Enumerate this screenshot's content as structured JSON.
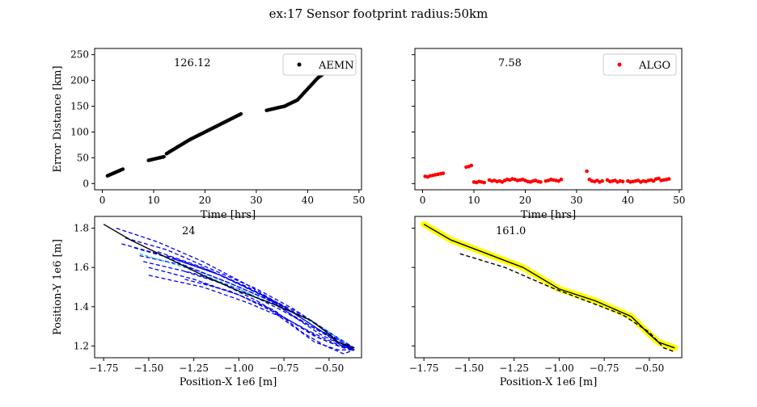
{
  "figure": {
    "suptitle": "ex:17  Sensor footprint radius:50km"
  },
  "chart_data": [
    {
      "id": "tl",
      "type": "scatter",
      "annotation": "126.12",
      "xlabel": "Time [hrs]",
      "ylabel": "Error Distance [km]",
      "xlim": [
        -1.5,
        50.5
      ],
      "ylim": [
        -12,
        262
      ],
      "xticks": [
        0,
        10,
        20,
        30,
        40,
        50
      ],
      "yticks": [
        0,
        50,
        100,
        150,
        200,
        250
      ],
      "show_xticklabels": true,
      "show_yticklabels": true,
      "legend": {
        "label": "AEMN",
        "position": "top-right"
      },
      "series": [
        {
          "name": "AEMN",
          "color": "#000000",
          "segments": [
            {
              "x": [
                1,
                4
              ],
              "y": [
                15,
                28
              ]
            },
            {
              "x": [
                9,
                12
              ],
              "y": [
                45,
                52
              ]
            },
            {
              "x": [
                12.5,
                17
              ],
              "y": [
                58,
                85
              ]
            },
            {
              "x": [
                17,
                22
              ],
              "y": [
                85,
                110
              ]
            },
            {
              "x": [
                22,
                27
              ],
              "y": [
                110,
                135
              ]
            },
            {
              "x": [
                32,
                35.5
              ],
              "y": [
                142,
                150
              ]
            },
            {
              "x": [
                35.5,
                38
              ],
              "y": [
                150,
                162
              ]
            },
            {
              "x": [
                38,
                42
              ],
              "y": [
                162,
                205
              ]
            },
            {
              "x": [
                42,
                48
              ],
              "y": [
                205,
                248
              ]
            }
          ]
        }
      ]
    },
    {
      "id": "tr",
      "type": "scatter",
      "annotation": "7.58",
      "xlabel": "Time [hrs]",
      "ylabel": "",
      "xlim": [
        -1.5,
        50.5
      ],
      "ylim": [
        -12,
        262
      ],
      "xticks": [
        0,
        10,
        20,
        30,
        40,
        50
      ],
      "yticks": [
        0,
        50,
        100,
        150,
        200,
        250
      ],
      "show_xticklabels": true,
      "show_yticklabels": false,
      "legend": {
        "label": "ALGO",
        "position": "top-right"
      },
      "series": [
        {
          "name": "ALGO",
          "color": "#ff0000",
          "points": [
            [
              0.5,
              14
            ],
            [
              1,
              13
            ],
            [
              1.5,
              15
            ],
            [
              2,
              16
            ],
            [
              2.5,
              17
            ],
            [
              3,
              18
            ],
            [
              3.5,
              19
            ],
            [
              4,
              20
            ],
            [
              8.5,
              32
            ],
            [
              9,
              33
            ],
            [
              9.5,
              35
            ],
            [
              10,
              3
            ],
            [
              10.5,
              2
            ],
            [
              11,
              4
            ],
            [
              11.5,
              3
            ],
            [
              12,
              2
            ],
            [
              13,
              7
            ],
            [
              13.5,
              5
            ],
            [
              14,
              6
            ],
            [
              14.5,
              4
            ],
            [
              15,
              5
            ],
            [
              15.5,
              3
            ],
            [
              16,
              6
            ],
            [
              16.5,
              8
            ],
            [
              17,
              7
            ],
            [
              17.5,
              9
            ],
            [
              18,
              8
            ],
            [
              18.5,
              6
            ],
            [
              19,
              7
            ],
            [
              19.5,
              8
            ],
            [
              20,
              6
            ],
            [
              20.5,
              4
            ],
            [
              21,
              3
            ],
            [
              21.5,
              5
            ],
            [
              22,
              6
            ],
            [
              22.5,
              4
            ],
            [
              23,
              3
            ],
            [
              24,
              5
            ],
            [
              24.5,
              6
            ],
            [
              25,
              8
            ],
            [
              25.5,
              7
            ],
            [
              26,
              6
            ],
            [
              26.5,
              5
            ],
            [
              27,
              8
            ],
            [
              32,
              24
            ],
            [
              32.5,
              8
            ],
            [
              33,
              5
            ],
            [
              33.5,
              4
            ],
            [
              34,
              6
            ],
            [
              34.5,
              3
            ],
            [
              35,
              5
            ],
            [
              36,
              7
            ],
            [
              36.5,
              4
            ],
            [
              37,
              5
            ],
            [
              37.5,
              6
            ],
            [
              38,
              3
            ],
            [
              38.5,
              5
            ],
            [
              39,
              4
            ],
            [
              40,
              5
            ],
            [
              40.5,
              3
            ],
            [
              41,
              4
            ],
            [
              41.5,
              5
            ],
            [
              42,
              6
            ],
            [
              42.5,
              3
            ],
            [
              43,
              5
            ],
            [
              43.5,
              4
            ],
            [
              44,
              6
            ],
            [
              44.5,
              7
            ],
            [
              45,
              5
            ],
            [
              45.5,
              9
            ],
            [
              46,
              10
            ],
            [
              46.5,
              6
            ],
            [
              47,
              7
            ],
            [
              47.5,
              8
            ],
            [
              48,
              9
            ]
          ]
        }
      ]
    },
    {
      "id": "bl",
      "type": "line",
      "annotation": "24",
      "xlabel": "Position-X 1e6 [m]",
      "ylabel": "Position-Y 1e6 [m]",
      "xlim": [
        -1.8,
        -0.32
      ],
      "ylim": [
        1.14,
        1.86
      ],
      "xticks": [
        -1.75,
        -1.5,
        -1.25,
        -1.0,
        -0.75,
        -0.5
      ],
      "xticklabels": [
        "−1.75",
        "−1.50",
        "−1.25",
        "−1.00",
        "−0.75",
        "−0.50"
      ],
      "yticks": [
        1.2,
        1.4,
        1.6,
        1.8
      ],
      "yticklabels": [
        "1.2",
        "1.4",
        "1.6",
        "1.8"
      ],
      "show_xticklabels": true,
      "show_yticklabels": true,
      "truth": {
        "x": [
          -1.75,
          -1.6,
          -1.4,
          -1.2,
          -1.0,
          -0.8,
          -0.6,
          -0.5,
          -0.45,
          -0.36
        ],
        "y": [
          1.82,
          1.74,
          1.65,
          1.56,
          1.48,
          1.41,
          1.33,
          1.26,
          1.22,
          1.19
        ]
      },
      "dashed_tracks": [
        {
          "x": [
            -1.68,
            -1.45,
            -1.2,
            -0.95,
            -0.75,
            -0.55,
            -0.36
          ],
          "y": [
            1.8,
            1.73,
            1.63,
            1.51,
            1.4,
            1.28,
            1.19
          ]
        },
        {
          "x": [
            -1.63,
            -1.4,
            -1.15,
            -0.9,
            -0.7,
            -0.5,
            -0.36
          ],
          "y": [
            1.75,
            1.69,
            1.59,
            1.49,
            1.39,
            1.27,
            1.19
          ]
        },
        {
          "x": [
            -1.58,
            -1.35,
            -1.1,
            -0.85,
            -0.65,
            -0.48,
            -0.36
          ],
          "y": [
            1.7,
            1.64,
            1.56,
            1.45,
            1.36,
            1.25,
            1.18
          ]
        },
        {
          "x": [
            -1.55,
            -1.3,
            -1.05,
            -0.8,
            -0.6,
            -0.45,
            -0.36
          ],
          "y": [
            1.66,
            1.61,
            1.52,
            1.42,
            1.33,
            1.24,
            1.18
          ]
        },
        {
          "x": [
            -1.53,
            -1.25,
            -1.0,
            -0.78,
            -0.6,
            -0.45,
            -0.36
          ],
          "y": [
            1.63,
            1.57,
            1.49,
            1.39,
            1.3,
            1.22,
            1.18
          ]
        },
        {
          "x": [
            -1.5,
            -1.25,
            -1.0,
            -0.8,
            -0.62,
            -0.46,
            -0.36
          ],
          "y": [
            1.6,
            1.54,
            1.46,
            1.37,
            1.28,
            1.21,
            1.18
          ]
        },
        {
          "x": [
            -1.5,
            -1.2,
            -0.95,
            -0.72,
            -0.55,
            -0.42,
            -0.36
          ],
          "y": [
            1.56,
            1.5,
            1.42,
            1.33,
            1.24,
            1.19,
            1.18
          ]
        },
        {
          "x": [
            -1.45,
            -1.2,
            -0.95,
            -0.75,
            -0.6,
            -0.45,
            -0.36
          ],
          "y": [
            1.68,
            1.6,
            1.5,
            1.4,
            1.31,
            1.22,
            1.18
          ]
        },
        {
          "x": [
            -1.4,
            -1.15,
            -0.9,
            -0.7,
            -0.55,
            -0.43,
            -0.36
          ],
          "y": [
            1.66,
            1.58,
            1.47,
            1.37,
            1.28,
            1.2,
            1.18
          ]
        },
        {
          "x": [
            -1.35,
            -1.1,
            -0.85,
            -0.68,
            -0.55,
            -0.42,
            -0.36
          ],
          "y": [
            1.64,
            1.56,
            1.45,
            1.34,
            1.26,
            1.2,
            1.18
          ]
        },
        {
          "x": [
            -1.3,
            -1.1,
            -0.9,
            -0.72,
            -0.58,
            -0.45,
            -0.36
          ],
          "y": [
            1.58,
            1.52,
            1.43,
            1.33,
            1.25,
            1.2,
            1.18
          ]
        },
        {
          "x": [
            -1.3,
            -1.05,
            -0.85,
            -0.7,
            -0.58,
            -0.45,
            -0.36
          ],
          "y": [
            1.54,
            1.48,
            1.4,
            1.3,
            1.22,
            1.18,
            1.18
          ]
        },
        {
          "x": [
            -1.2,
            -1.0,
            -0.8,
            -0.65,
            -0.52,
            -0.42,
            -0.36
          ],
          "y": [
            1.52,
            1.46,
            1.38,
            1.27,
            1.2,
            1.16,
            1.18
          ]
        },
        {
          "x": [
            -1.65,
            -1.45,
            -1.25,
            -1.05,
            -0.85,
            -0.6,
            -0.36
          ],
          "y": [
            1.72,
            1.67,
            1.59,
            1.52,
            1.44,
            1.3,
            1.19
          ]
        }
      ],
      "colors": {
        "truth": "#000000",
        "tracks": "#0000ee",
        "mean": "#00bfff"
      },
      "mean_track": {
        "x": [
          -1.55,
          -1.3,
          -1.05,
          -0.85,
          -0.65,
          -0.5,
          -0.4
        ],
        "y": [
          1.67,
          1.6,
          1.51,
          1.43,
          1.35,
          1.27,
          1.21
        ]
      }
    },
    {
      "id": "br",
      "type": "line",
      "annotation": "161.0",
      "xlabel": "Position-X 1e6 [m]",
      "ylabel": "",
      "xlim": [
        -1.8,
        -0.32
      ],
      "ylim": [
        1.14,
        1.86
      ],
      "xticks": [
        -1.75,
        -1.5,
        -1.25,
        -1.0,
        -0.75,
        -0.5
      ],
      "xticklabels": [
        "−1.75",
        "−1.50",
        "−1.25",
        "−1.00",
        "−0.75",
        "−0.50"
      ],
      "yticks": [
        1.2,
        1.4,
        1.6,
        1.8
      ],
      "show_xticklabels": true,
      "show_yticklabels": false,
      "truth": {
        "x": [
          -1.75,
          -1.6,
          -1.4,
          -1.2,
          -1.0,
          -0.8,
          -0.6,
          -0.5,
          -0.45,
          -0.36
        ],
        "y": [
          1.82,
          1.74,
          1.67,
          1.6,
          1.49,
          1.43,
          1.35,
          1.26,
          1.22,
          1.19
        ]
      },
      "estimate": {
        "x": [
          -1.55,
          -1.3,
          -1.05,
          -0.85,
          -0.65,
          -0.5,
          -0.42,
          -0.36
        ],
        "y": [
          1.67,
          1.6,
          1.5,
          1.43,
          1.36,
          1.27,
          1.19,
          1.17
        ]
      },
      "colors": {
        "truth": "#000000",
        "estimate": "#000000",
        "highlight": "#ffff00"
      }
    }
  ]
}
